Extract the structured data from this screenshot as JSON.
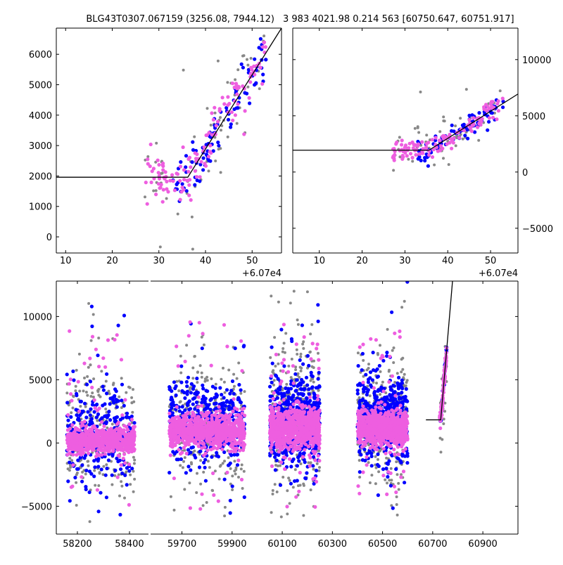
{
  "chart_data": [
    {
      "type": "scatter",
      "title": "BLG43T0307.067159 (3256.08, 7944.12)",
      "x_offset_label": "+6.07e4",
      "xlim": [
        8.0,
        56.3
      ],
      "ylim": [
        -530,
        6860
      ],
      "xticks": [
        "10",
        "20",
        "30",
        "40",
        "50"
      ],
      "xtick_values": [
        10,
        20,
        30,
        40,
        50
      ],
      "yticks": [
        "0",
        "1000",
        "2000",
        "3000",
        "4000",
        "5000",
        "6000"
      ],
      "ytick_values": [
        0,
        1000,
        2000,
        3000,
        4000,
        5000,
        6000
      ],
      "ytick_side": "left",
      "fit_line": [
        [
          8,
          1960
        ],
        [
          36.2,
          1960
        ],
        [
          56.3,
          6860
        ]
      ],
      "clusters": [
        {
          "color": "#888888",
          "x": [
            27,
            53
          ],
          "n": 70,
          "sd": 550,
          "seed": 11
        },
        {
          "color": "#0000ff",
          "x": [
            33,
            53
          ],
          "n": 90,
          "sd": 380,
          "seed": 12
        },
        {
          "color": "#ee5ee0",
          "x": [
            27,
            53
          ],
          "n": 130,
          "sd": 420,
          "seed": 13
        }
      ]
    },
    {
      "type": "scatter",
      "title": "3 983 4021.98 0.214 563 [60750.647, 60751.917]",
      "x_offset_label": "+6.07e4",
      "xlim": [
        3.8,
        56.4
      ],
      "ylim": [
        -7200,
        12800
      ],
      "xticks": [
        "10",
        "20",
        "30",
        "40",
        "50"
      ],
      "xtick_values": [
        10,
        20,
        30,
        40,
        50
      ],
      "yticks": [
        "−5000",
        "0",
        "5000",
        "10000"
      ],
      "ytick_values": [
        -5000,
        0,
        5000,
        10000
      ],
      "ytick_side": "right",
      "fit_line": [
        [
          3.8,
          1940
        ],
        [
          35.6,
          1940
        ],
        [
          56.4,
          6940
        ]
      ],
      "clusters": [
        {
          "color": "#888888",
          "x": [
            27,
            53
          ],
          "n": 70,
          "sd": 900,
          "seed": 21
        },
        {
          "color": "#0000ff",
          "x": [
            33,
            53
          ],
          "n": 90,
          "sd": 450,
          "seed": 22
        },
        {
          "color": "#ee5ee0",
          "x": [
            27,
            53
          ],
          "n": 130,
          "sd": 500,
          "seed": 23
        }
      ]
    },
    {
      "type": "scatter",
      "title": "",
      "broken_x_axis": true,
      "panels": [
        {
          "xlim": [
            58119,
            58473
          ],
          "xticks": [
            "58200",
            "58400"
          ],
          "xtick_values": [
            58200,
            58400
          ]
        },
        {
          "xlim": [
            59575,
            61040
          ],
          "xticks": [
            "59700",
            "59900",
            "60100",
            "60300",
            "60500",
            "60700",
            "60900"
          ],
          "xtick_values": [
            59700,
            59900,
            60100,
            60300,
            60500,
            60700,
            60900
          ]
        }
      ],
      "ylim": [
        -7200,
        12800
      ],
      "yticks": [
        "−5000",
        "0",
        "5000",
        "10000"
      ],
      "ytick_values": [
        -5000,
        0,
        5000,
        10000
      ],
      "fit_line": [
        [
          60673,
          1830
        ],
        [
          60732,
          1830
        ],
        [
          60779,
          12800
        ]
      ],
      "clusters": [
        {
          "color": "#888888",
          "x": [
            58160,
            58420
          ],
          "mean": 800,
          "sd": 2600,
          "n": 260,
          "seed": 31
        },
        {
          "color": "#0000ff",
          "x": [
            58160,
            58420
          ],
          "mean": 600,
          "sd": 2000,
          "n": 260,
          "seed": 32
        },
        {
          "color": "#ee5ee0",
          "x": [
            58160,
            58420
          ],
          "mean": 200,
          "sd": 500,
          "n": 700,
          "seed": 33
        },
        {
          "color": "#888888",
          "x": [
            59650,
            59950
          ],
          "mean": 1600,
          "sd": 2600,
          "n": 280,
          "seed": 41
        },
        {
          "color": "#0000ff",
          "x": [
            59650,
            59950
          ],
          "mean": 1500,
          "sd": 1500,
          "n": 500,
          "seed": 42
        },
        {
          "color": "#ee5ee0",
          "x": [
            59650,
            59950
          ],
          "mean": 900,
          "sd": 650,
          "n": 800,
          "seed": 43
        },
        {
          "color": "#888888",
          "x": [
            60050,
            60250
          ],
          "mean": 2000,
          "sd": 3000,
          "n": 300,
          "seed": 51
        },
        {
          "color": "#0000ff",
          "x": [
            60050,
            60250
          ],
          "mean": 1800,
          "sd": 1700,
          "n": 550,
          "seed": 52
        },
        {
          "color": "#ee5ee0",
          "x": [
            60050,
            60250
          ],
          "mean": 1200,
          "sd": 800,
          "n": 800,
          "seed": 53
        },
        {
          "color": "#888888",
          "x": [
            60400,
            60600
          ],
          "mean": 1800,
          "sd": 2800,
          "n": 260,
          "seed": 61
        },
        {
          "color": "#0000ff",
          "x": [
            60400,
            60600
          ],
          "mean": 1800,
          "sd": 1600,
          "n": 500,
          "seed": 62
        },
        {
          "color": "#ee5ee0",
          "x": [
            60400,
            60600
          ],
          "mean": 1200,
          "sd": 700,
          "n": 800,
          "seed": 63
        },
        {
          "color": "#888888",
          "x": [
            60728,
            60756
          ],
          "mean": 3000,
          "sd": 1800,
          "n": 25,
          "seed": 71,
          "follow_line": true
        },
        {
          "color": "#0000ff",
          "x": [
            60730,
            60756
          ],
          "mean": 3000,
          "sd": 300,
          "n": 40,
          "seed": 72,
          "follow_line": true
        },
        {
          "color": "#ee5ee0",
          "x": [
            60728,
            60756
          ],
          "mean": 3000,
          "sd": 350,
          "n": 90,
          "seed": 73,
          "follow_line": true
        }
      ]
    }
  ]
}
